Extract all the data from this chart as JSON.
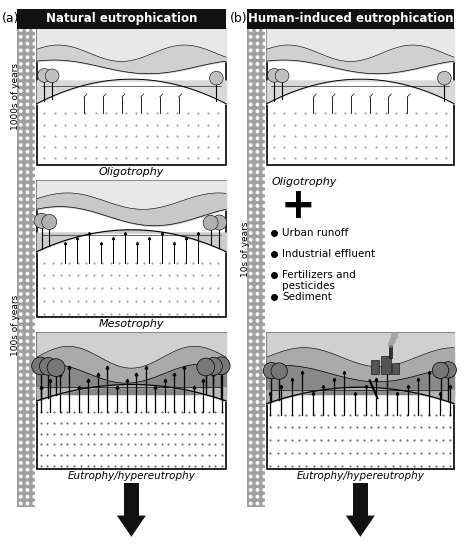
{
  "title_a": "Natural eutrophication",
  "title_b": "Human-induced eutrophication",
  "label_a": "(a)",
  "label_b": "(b)",
  "stage_oligo": "Oligotrophy",
  "stage_meso": "Mesotrophy",
  "stage_eutro": "Eutrophy/hypereutrophy",
  "label_b_oligo": "Oligotrophy",
  "time_label_a1": "1000s of years",
  "time_label_a2": "100s of years",
  "time_label_b": "10s of years",
  "plus_text": "+",
  "bullet_items": [
    "Urban runoff",
    "Industrial effluent",
    "Fertilizers and\npesticides",
    "Sediment"
  ],
  "bg_color": "#ffffff",
  "title_bg": "#111111",
  "title_fg": "#ffffff",
  "dot_bg": "#aaaaaa",
  "dot_fg": "#ffffff",
  "arrow_color": "#111111",
  "box_ec": "#000000",
  "box_fc": "#ffffff"
}
